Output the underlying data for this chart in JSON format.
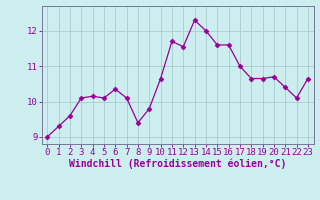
{
  "x": [
    0,
    1,
    2,
    3,
    4,
    5,
    6,
    7,
    8,
    9,
    10,
    11,
    12,
    13,
    14,
    15,
    16,
    17,
    18,
    19,
    20,
    21,
    22,
    23
  ],
  "y": [
    9.0,
    9.3,
    9.6,
    10.1,
    10.15,
    10.1,
    10.35,
    10.1,
    9.4,
    9.8,
    10.65,
    11.7,
    11.55,
    12.3,
    12.0,
    11.6,
    11.6,
    11.0,
    10.65,
    10.65,
    10.7,
    10.4,
    10.1,
    10.65
  ],
  "line_color": "#990099",
  "marker": "D",
  "marker_size": 2.5,
  "bg_color": "#cceeee",
  "grid_color": "#aacccc",
  "xlabel": "Windchill (Refroidissement éolien,°C)",
  "ylabel": "",
  "xlim": [
    -0.5,
    23.5
  ],
  "ylim": [
    8.8,
    12.7
  ],
  "yticks": [
    9,
    10,
    11,
    12
  ],
  "xticks": [
    0,
    1,
    2,
    3,
    4,
    5,
    6,
    7,
    8,
    9,
    10,
    11,
    12,
    13,
    14,
    15,
    16,
    17,
    18,
    19,
    20,
    21,
    22,
    23
  ],
  "tick_color": "#990099",
  "label_color": "#990099",
  "tick_fontsize": 6.5,
  "xlabel_fontsize": 7.0,
  "spine_color": "#777799",
  "bottom_spine_color": "#666688"
}
